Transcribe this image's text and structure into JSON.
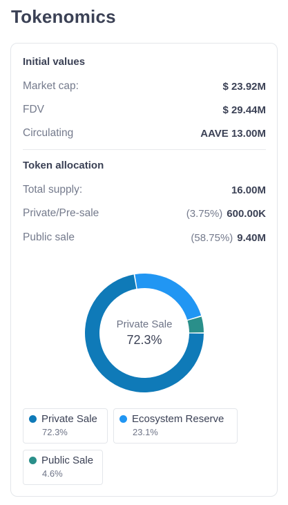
{
  "page": {
    "title": "Tokenomics"
  },
  "initial_values": {
    "title": "Initial values",
    "rows": [
      {
        "label": "Market cap:",
        "value": "$ 23.92M"
      },
      {
        "label": "FDV",
        "value": "$ 29.44M"
      },
      {
        "label": "Circulating",
        "value": "AAVE 13.00M"
      }
    ]
  },
  "token_allocation": {
    "title": "Token allocation",
    "rows": [
      {
        "label": "Total supply:",
        "pct": "",
        "value": "16.00M"
      },
      {
        "label": "Private/Pre-sale",
        "pct": "(3.75%)",
        "value": "600.00K"
      },
      {
        "label": "Public sale",
        "pct": "(58.75%)",
        "value": "9.40M"
      }
    ]
  },
  "donut_center": {
    "label": "Private Sale",
    "value": "72.3%"
  },
  "legend": [
    {
      "name": "Private Sale",
      "value": "72.3%",
      "color": "#0f7ab8"
    },
    {
      "name": "Ecosystem Reserve",
      "value": "23.1%",
      "color": "#2196f3"
    },
    {
      "name": "Public Sale",
      "value": "4.6%",
      "color": "#2a8f8a"
    }
  ],
  "chart_data": {
    "type": "pie",
    "categories": [
      "Private Sale",
      "Ecosystem Reserve",
      "Public Sale"
    ],
    "values": [
      72.3,
      23.1,
      4.6
    ],
    "colors": [
      "#0f7ab8",
      "#2196f3",
      "#2a8f8a"
    ],
    "style": "donut"
  }
}
